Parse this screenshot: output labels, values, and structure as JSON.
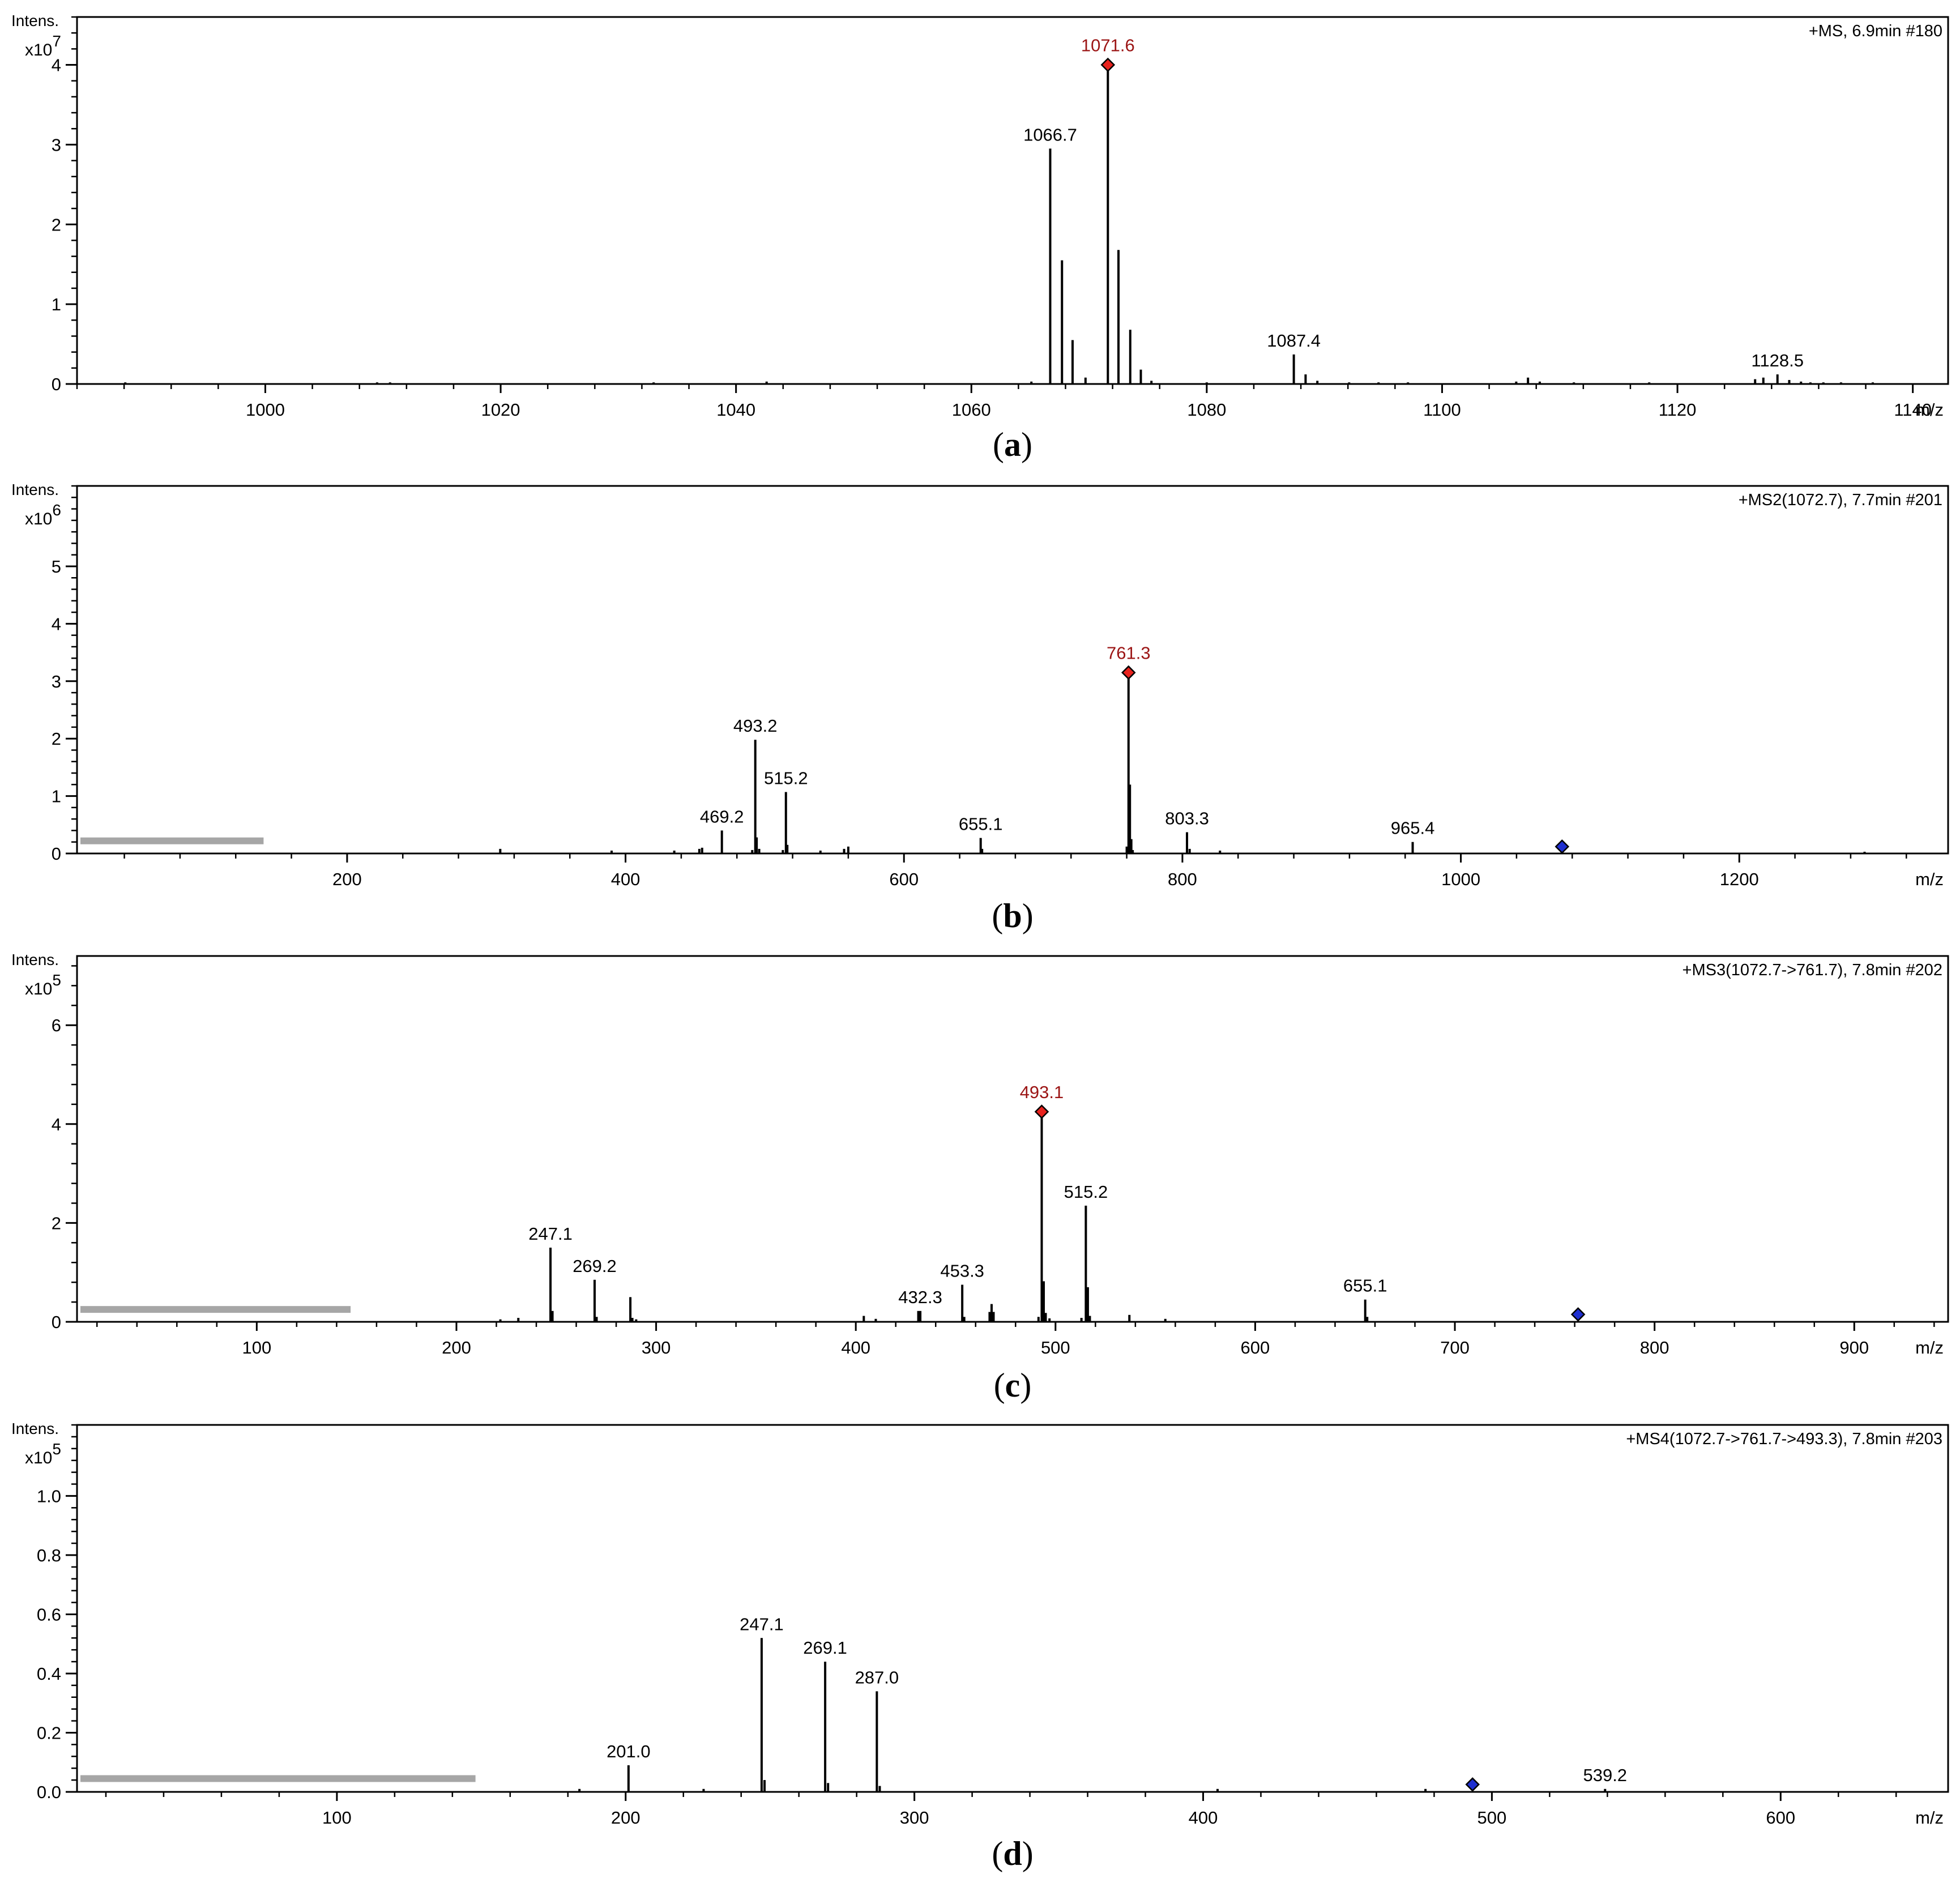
{
  "colors": {
    "frame": "#000000",
    "peak": "#000000",
    "precursor_label": "#9b1414",
    "precursor_marker": "#e8231e",
    "isolated_marker": "#1f2fd0",
    "isolation_bar": "#a6a6a6"
  },
  "chart_data": [
    {
      "type": "bar",
      "panel_label": "(a)",
      "panel_letter": "a",
      "scan_info": "+MS, 6.9min #180",
      "ylabel": "Intens.",
      "yexp_base": "x10",
      "yexp_power": "7",
      "xlabel": "m/z",
      "xlim": [
        984,
        1143
      ],
      "ylim": [
        0,
        4.6
      ],
      "xticks": [
        1000,
        1020,
        1040,
        1060,
        1080,
        1100,
        1120,
        1140
      ],
      "xtick_labels": [
        "1000",
        "1020",
        "1040",
        "1060",
        "1080",
        "1100",
        "1120",
        "1140"
      ],
      "yticks": [
        0,
        1,
        2,
        3,
        4
      ],
      "ytick_labels": [
        "0",
        "1",
        "2",
        "3",
        "4"
      ],
      "peaks": [
        {
          "x": 988.1,
          "y": 0.02
        },
        {
          "x": 1009.5,
          "y": 0.02
        },
        {
          "x": 1010.6,
          "y": 0.02
        },
        {
          "x": 1033.0,
          "y": 0.02
        },
        {
          "x": 1042.6,
          "y": 0.03
        },
        {
          "x": 1065.1,
          "y": 0.03
        },
        {
          "x": 1066.7,
          "y": 2.95
        },
        {
          "x": 1067.7,
          "y": 1.55
        },
        {
          "x": 1068.6,
          "y": 0.55
        },
        {
          "x": 1069.7,
          "y": 0.08
        },
        {
          "x": 1071.6,
          "y": 4.0
        },
        {
          "x": 1072.5,
          "y": 1.68
        },
        {
          "x": 1073.5,
          "y": 0.68
        },
        {
          "x": 1074.4,
          "y": 0.18
        },
        {
          "x": 1075.3,
          "y": 0.04
        },
        {
          "x": 1080.0,
          "y": 0.02
        },
        {
          "x": 1087.4,
          "y": 0.37
        },
        {
          "x": 1088.4,
          "y": 0.12
        },
        {
          "x": 1089.4,
          "y": 0.04
        },
        {
          "x": 1092.1,
          "y": 0.02
        },
        {
          "x": 1094.6,
          "y": 0.02
        },
        {
          "x": 1097.1,
          "y": 0.02
        },
        {
          "x": 1106.3,
          "y": 0.03
        },
        {
          "x": 1107.3,
          "y": 0.08
        },
        {
          "x": 1108.3,
          "y": 0.03
        },
        {
          "x": 1111.2,
          "y": 0.02
        },
        {
          "x": 1117.6,
          "y": 0.02
        },
        {
          "x": 1126.6,
          "y": 0.06
        },
        {
          "x": 1127.3,
          "y": 0.08
        },
        {
          "x": 1128.5,
          "y": 0.12
        },
        {
          "x": 1129.5,
          "y": 0.05
        },
        {
          "x": 1130.5,
          "y": 0.03
        },
        {
          "x": 1131.3,
          "y": 0.02
        },
        {
          "x": 1132.4,
          "y": 0.02
        },
        {
          "x": 1133.9,
          "y": 0.02
        },
        {
          "x": 1136.6,
          "y": 0.02
        }
      ],
      "labels": [
        {
          "x": 1071.6,
          "y": 4.0,
          "text": "1071.6",
          "precursor": true
        },
        {
          "x": 1066.7,
          "y": 2.95,
          "text": "1066.7",
          "precursor": false
        },
        {
          "x": 1087.4,
          "y": 0.37,
          "text": "1087.4",
          "precursor": false
        },
        {
          "x": 1128.5,
          "y": 0.12,
          "text": "1128.5",
          "precursor": false
        }
      ],
      "precursor_marker": {
        "x": 1071.6,
        "y": 4.0
      },
      "isolated_marker": null,
      "isolation_bar": null
    },
    {
      "type": "bar",
      "panel_label": "(b)",
      "panel_letter": "b",
      "scan_info": "+MS2(1072.7), 7.7min #201",
      "ylabel": "Intens.",
      "yexp_base": "x10",
      "yexp_power": "6",
      "xlabel": "m/z",
      "xlim": [
        6,
        1350
      ],
      "ylim": [
        0,
        6.4
      ],
      "xticks": [
        200,
        400,
        600,
        800,
        1000,
        1200
      ],
      "xtick_labels": [
        "200",
        "400",
        "600",
        "800",
        "1000",
        "1200"
      ],
      "yticks": [
        0,
        1,
        2,
        3,
        4,
        5
      ],
      "ytick_labels": [
        "0",
        "1",
        "2",
        "3",
        "4",
        "5"
      ],
      "peaks": [
        {
          "x": 310,
          "y": 0.08
        },
        {
          "x": 390,
          "y": 0.05
        },
        {
          "x": 435,
          "y": 0.05
        },
        {
          "x": 453,
          "y": 0.08
        },
        {
          "x": 455,
          "y": 0.1
        },
        {
          "x": 469.2,
          "y": 0.4
        },
        {
          "x": 491,
          "y": 0.06
        },
        {
          "x": 493.2,
          "y": 1.98
        },
        {
          "x": 494.2,
          "y": 0.28
        },
        {
          "x": 496,
          "y": 0.08
        },
        {
          "x": 513,
          "y": 0.06
        },
        {
          "x": 515.2,
          "y": 1.07
        },
        {
          "x": 516.2,
          "y": 0.15
        },
        {
          "x": 540,
          "y": 0.05
        },
        {
          "x": 557,
          "y": 0.08
        },
        {
          "x": 560,
          "y": 0.12
        },
        {
          "x": 655.1,
          "y": 0.27
        },
        {
          "x": 656.1,
          "y": 0.08
        },
        {
          "x": 760.0,
          "y": 0.12
        },
        {
          "x": 761.3,
          "y": 3.15
        },
        {
          "x": 762.3,
          "y": 1.2
        },
        {
          "x": 763.3,
          "y": 0.25
        },
        {
          "x": 764.3,
          "y": 0.06
        },
        {
          "x": 803.3,
          "y": 0.37
        },
        {
          "x": 805.2,
          "y": 0.08
        },
        {
          "x": 827,
          "y": 0.05
        },
        {
          "x": 965.4,
          "y": 0.2
        },
        {
          "x": 1290,
          "y": 0.03
        }
      ],
      "labels": [
        {
          "x": 761.3,
          "y": 3.15,
          "text": "761.3",
          "precursor": true
        },
        {
          "x": 493.2,
          "y": 1.98,
          "text": "493.2",
          "precursor": false
        },
        {
          "x": 515.2,
          "y": 1.07,
          "text": "515.2",
          "precursor": false
        },
        {
          "x": 469.2,
          "y": 0.4,
          "text": "469.2",
          "precursor": false
        },
        {
          "x": 655.1,
          "y": 0.27,
          "text": "655.1",
          "precursor": false
        },
        {
          "x": 803.3,
          "y": 0.37,
          "text": "803.3",
          "precursor": false
        },
        {
          "x": 965.4,
          "y": 0.2,
          "text": "965.4",
          "precursor": false
        }
      ],
      "precursor_marker": {
        "x": 761.3,
        "y": 3.15
      },
      "isolated_marker": {
        "x": 1072.7,
        "y": 0.12
      },
      "isolation_bar": {
        "x0": 6,
        "x1": 140,
        "y": 0.22
      }
    },
    {
      "type": "bar",
      "panel_label": "(c)",
      "panel_letter": "c",
      "scan_info": "+MS3(1072.7->761.7), 7.8min #202",
      "ylabel": "Intens.",
      "yexp_base": "x10",
      "yexp_power": "5",
      "xlabel": "m/z",
      "xlim": [
        10,
        947
      ],
      "ylim": [
        0,
        7.4
      ],
      "xticks": [
        100,
        200,
        300,
        400,
        500,
        600,
        700,
        800,
        900
      ],
      "xtick_labels": [
        "100",
        "200",
        "300",
        "400",
        "500",
        "600",
        "700",
        "800",
        "900"
      ],
      "yticks": [
        0,
        2,
        4,
        6
      ],
      "ytick_labels": [
        "0",
        "2",
        "4",
        "6"
      ],
      "peaks": [
        {
          "x": 222,
          "y": 0.05
        },
        {
          "x": 231,
          "y": 0.08
        },
        {
          "x": 247.1,
          "y": 1.5
        },
        {
          "x": 248.1,
          "y": 0.22
        },
        {
          "x": 269.2,
          "y": 0.85
        },
        {
          "x": 270.2,
          "y": 0.1
        },
        {
          "x": 287.1,
          "y": 0.5
        },
        {
          "x": 288.1,
          "y": 0.08
        },
        {
          "x": 290,
          "y": 0.05
        },
        {
          "x": 404,
          "y": 0.12
        },
        {
          "x": 410,
          "y": 0.06
        },
        {
          "x": 431.3,
          "y": 0.22
        },
        {
          "x": 432.3,
          "y": 0.22
        },
        {
          "x": 453.3,
          "y": 0.75
        },
        {
          "x": 454.3,
          "y": 0.1
        },
        {
          "x": 467,
          "y": 0.2
        },
        {
          "x": 468,
          "y": 0.36
        },
        {
          "x": 469,
          "y": 0.2
        },
        {
          "x": 491.5,
          "y": 0.1
        },
        {
          "x": 493.1,
          "y": 4.25
        },
        {
          "x": 494.1,
          "y": 0.82
        },
        {
          "x": 495.1,
          "y": 0.18
        },
        {
          "x": 497,
          "y": 0.07
        },
        {
          "x": 513,
          "y": 0.08
        },
        {
          "x": 515.2,
          "y": 2.35
        },
        {
          "x": 516.2,
          "y": 0.7
        },
        {
          "x": 517.2,
          "y": 0.12
        },
        {
          "x": 537,
          "y": 0.14
        },
        {
          "x": 555,
          "y": 0.06
        },
        {
          "x": 655.1,
          "y": 0.45
        },
        {
          "x": 656.1,
          "y": 0.1
        }
      ],
      "labels": [
        {
          "x": 493.1,
          "y": 4.25,
          "text": "493.1",
          "precursor": true
        },
        {
          "x": 247.1,
          "y": 1.5,
          "text": "247.1",
          "precursor": false
        },
        {
          "x": 269.2,
          "y": 0.85,
          "text": "269.2",
          "precursor": false
        },
        {
          "x": 432.3,
          "y": 0.22,
          "text": "432.3",
          "precursor": false
        },
        {
          "x": 453.3,
          "y": 0.75,
          "text": "453.3",
          "precursor": false
        },
        {
          "x": 515.2,
          "y": 2.35,
          "text": "515.2",
          "precursor": false
        },
        {
          "x": 655.1,
          "y": 0.45,
          "text": "655.1",
          "precursor": false
        }
      ],
      "precursor_marker": {
        "x": 493.1,
        "y": 4.25
      },
      "isolated_marker": {
        "x": 761.7,
        "y": 0.15
      },
      "isolation_bar": {
        "x0": 10,
        "x1": 147,
        "y": 0.25
      }
    },
    {
      "type": "bar",
      "panel_label": "(d)",
      "panel_letter": "d",
      "scan_info": "+MS4(1072.7->761.7->493.3), 7.8min #203",
      "ylabel": "Intens.",
      "yexp_base": "x10",
      "yexp_power": "5",
      "xlabel": "m/z",
      "xlim": [
        10,
        658
      ],
      "ylim": [
        0,
        1.24
      ],
      "xticks": [
        100,
        200,
        300,
        400,
        500,
        600
      ],
      "xtick_labels": [
        "100",
        "200",
        "300",
        "400",
        "500",
        "600"
      ],
      "yticks": [
        0,
        0.2,
        0.4,
        0.6,
        0.8,
        1.0
      ],
      "ytick_labels": [
        "0.0",
        "0.2",
        "0.4",
        "0.6",
        "0.8",
        "1.0"
      ],
      "peaks": [
        {
          "x": 184,
          "y": 0.01
        },
        {
          "x": 201.0,
          "y": 0.09
        },
        {
          "x": 227,
          "y": 0.01
        },
        {
          "x": 247.1,
          "y": 0.52
        },
        {
          "x": 248.1,
          "y": 0.04
        },
        {
          "x": 269.1,
          "y": 0.44
        },
        {
          "x": 270.1,
          "y": 0.03
        },
        {
          "x": 287.0,
          "y": 0.34
        },
        {
          "x": 288.0,
          "y": 0.02
        },
        {
          "x": 405,
          "y": 0.01
        },
        {
          "x": 477,
          "y": 0.01
        },
        {
          "x": 539.2,
          "y": 0.01
        }
      ],
      "labels": [
        {
          "x": 201.0,
          "y": 0.09,
          "text": "201.0",
          "precursor": false
        },
        {
          "x": 247.1,
          "y": 0.52,
          "text": "247.1",
          "precursor": false
        },
        {
          "x": 269.1,
          "y": 0.44,
          "text": "269.1",
          "precursor": false
        },
        {
          "x": 287.0,
          "y": 0.34,
          "text": "287.0",
          "precursor": false
        },
        {
          "x": 539.2,
          "y": 0.01,
          "text": "539.2",
          "precursor": false
        }
      ],
      "precursor_marker": null,
      "isolated_marker": {
        "x": 493.3,
        "y": 0.025
      },
      "isolation_bar": {
        "x0": 10,
        "x1": 148,
        "y": 0.045
      }
    }
  ]
}
